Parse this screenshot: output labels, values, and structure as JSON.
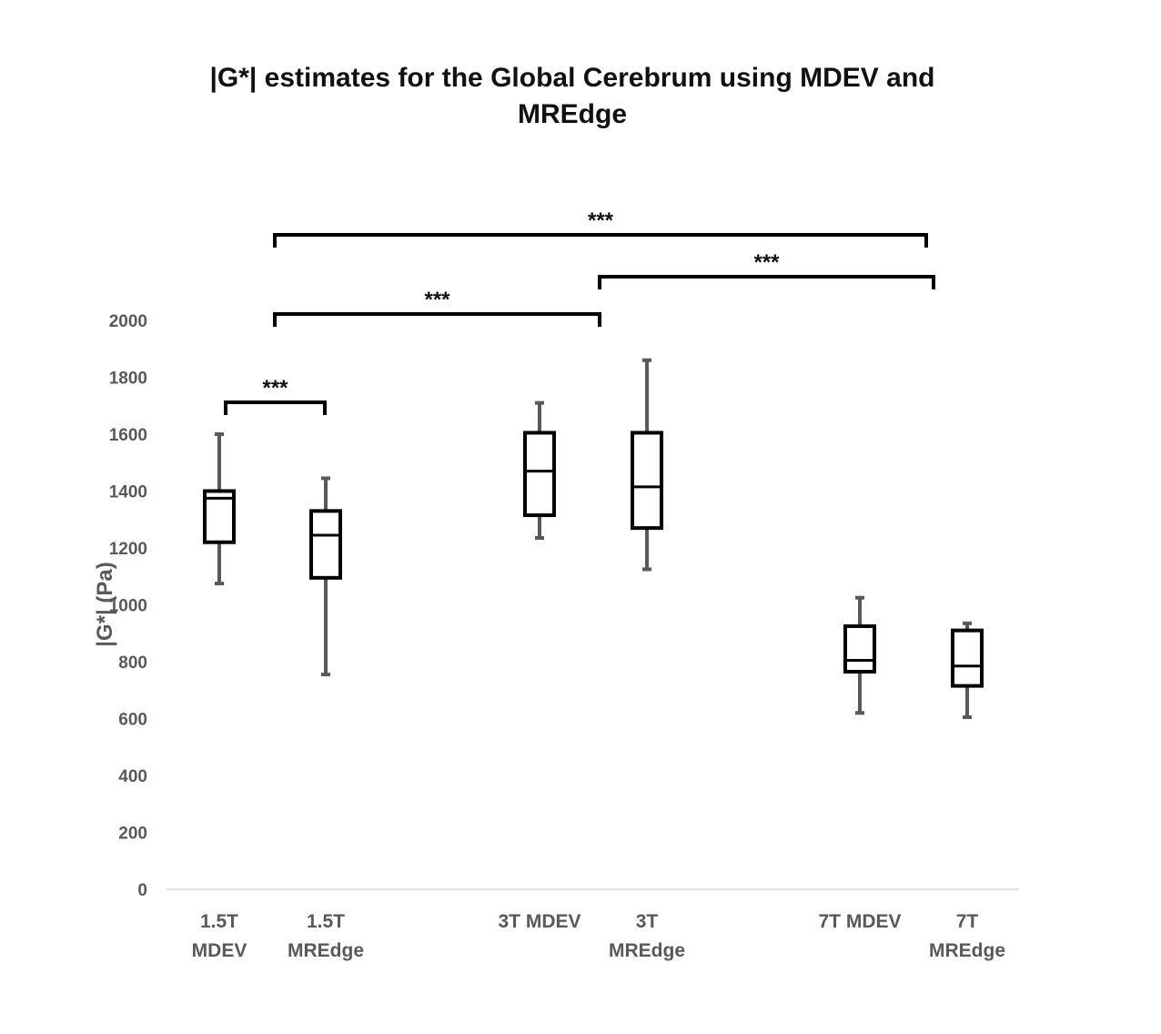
{
  "chart_data": {
    "type": "box",
    "title_lines": [
      "|G*| estimates for the Global Cerebrum using MDEV and",
      "MREdge"
    ],
    "title": "|G*| estimates for the Global Cerebrum using MDEV and MREdge",
    "xlabel": "",
    "ylabel": "|G*| (Pa)",
    "ylim": [
      0,
      2000
    ],
    "yticks": [
      0,
      200,
      400,
      600,
      800,
      1000,
      1200,
      1400,
      1600,
      1800,
      2000
    ],
    "grid": false,
    "categories": [
      {
        "lines": [
          "1.5T",
          "MDEV"
        ],
        "group": 0
      },
      {
        "lines": [
          "1.5T",
          "MREdge"
        ],
        "group": 0
      },
      {
        "lines": [
          "3T MDEV"
        ],
        "group": 1
      },
      {
        "lines": [
          "3T",
          "MREdge"
        ],
        "group": 1
      },
      {
        "lines": [
          "7T MDEV"
        ],
        "group": 2
      },
      {
        "lines": [
          "7T",
          "MREdge"
        ],
        "group": 2
      }
    ],
    "boxes": [
      {
        "name": "1.5T MDEV",
        "min": 1075,
        "q1": 1220,
        "median": 1375,
        "q3": 1400,
        "max": 1600
      },
      {
        "name": "1.5T MREdge",
        "min": 755,
        "q1": 1095,
        "median": 1245,
        "q3": 1330,
        "max": 1445
      },
      {
        "name": "3T MDEV",
        "min": 1235,
        "q1": 1315,
        "median": 1470,
        "q3": 1605,
        "max": 1710
      },
      {
        "name": "3T MREdge",
        "min": 1125,
        "q1": 1270,
        "median": 1415,
        "q3": 1605,
        "max": 1860
      },
      {
        "name": "7T MDEV",
        "min": 620,
        "q1": 765,
        "median": 805,
        "q3": 925,
        "max": 1025
      },
      {
        "name": "7T MREdge",
        "min": 605,
        "q1": 715,
        "median": 785,
        "q3": 910,
        "max": 935
      }
    ],
    "significance": [
      {
        "from": 0,
        "to": 1,
        "label": "***"
      },
      {
        "from": 1,
        "to": 3,
        "label": "***"
      },
      {
        "from": 3,
        "to": 5,
        "label": "***"
      },
      {
        "from": 1,
        "to": 5,
        "label": "***"
      }
    ]
  }
}
